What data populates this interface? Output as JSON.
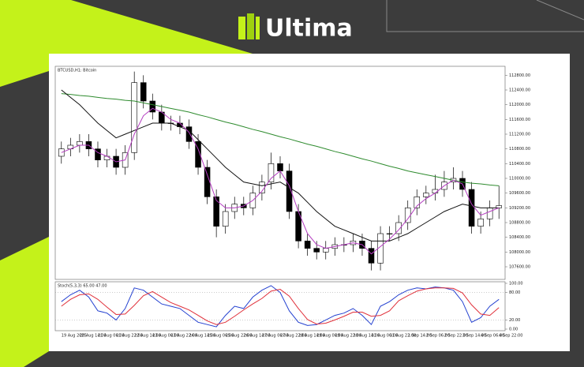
{
  "header": {
    "brand": "Ultima"
  },
  "chart_data": [
    {
      "type": "candlestick",
      "label": "BTCUSD,H1: Bitcoin",
      "open": [
        110600,
        110800,
        110900,
        111000,
        110800,
        110500,
        110600,
        110300,
        110700,
        112600,
        112100,
        111800,
        111500,
        111500,
        111400,
        111000,
        110300,
        109500,
        108700,
        109100,
        109300,
        109200,
        109600,
        109900,
        110400,
        110200,
        109100,
        108300,
        108100,
        108000,
        108100,
        108200,
        108200,
        108300,
        108100,
        107700,
        108500,
        108500,
        108800,
        109200,
        109500,
        109600,
        109700,
        109900,
        110000,
        109700,
        108700,
        108900,
        109200
      ],
      "high": [
        111000,
        111100,
        111200,
        111200,
        111000,
        110800,
        110800,
        110900,
        112900,
        112800,
        112300,
        112000,
        111700,
        111700,
        111600,
        111200,
        110500,
        109700,
        109300,
        109500,
        109500,
        109800,
        110100,
        110700,
        110600,
        110400,
        109300,
        108500,
        108300,
        108300,
        108400,
        108400,
        108500,
        108500,
        108300,
        108700,
        108700,
        109000,
        109400,
        109700,
        109800,
        110100,
        110200,
        110300,
        110200,
        109900,
        109100,
        109400,
        109800
      ],
      "low": [
        110400,
        110600,
        110700,
        110600,
        110300,
        110300,
        110100,
        110100,
        110500,
        111900,
        111600,
        111300,
        111300,
        111200,
        110800,
        110100,
        109300,
        108400,
        108500,
        108900,
        109000,
        109000,
        109400,
        109700,
        110000,
        108900,
        108100,
        107900,
        107800,
        107800,
        107900,
        108000,
        108000,
        107900,
        107500,
        107500,
        108300,
        108300,
        108600,
        109000,
        109300,
        109400,
        109500,
        109700,
        109500,
        108500,
        108500,
        108700,
        108900
      ],
      "close": [
        110800,
        110900,
        111000,
        110800,
        110500,
        110600,
        110300,
        110700,
        112600,
        112100,
        111800,
        111500,
        111500,
        111400,
        111000,
        110300,
        109500,
        108700,
        109100,
        109300,
        109200,
        109600,
        109900,
        110400,
        110200,
        109100,
        108300,
        108100,
        108000,
        108100,
        108200,
        108200,
        108300,
        108100,
        107700,
        108500,
        108500,
        108800,
        109200,
        109500,
        109600,
        109700,
        109900,
        110000,
        109700,
        108700,
        108900,
        109200,
        109260
      ],
      "up_color": "#ffffff",
      "down_color": "#000000",
      "series": [
        {
          "color": "#2e8b2e",
          "values": [
            112300,
            112280,
            112250,
            112230,
            112200,
            112170,
            112150,
            112120,
            112100,
            112050,
            112000,
            111950,
            111900,
            111850,
            111800,
            111730,
            111670,
            111600,
            111530,
            111470,
            111400,
            111330,
            111270,
            111200,
            111130,
            111070,
            111000,
            110930,
            110870,
            110800,
            110730,
            110670,
            110600,
            110530,
            110470,
            110400,
            110330,
            110270,
            110200,
            110150,
            110100,
            110050,
            110000,
            109950,
            109900,
            109870,
            109850,
            109820,
            109800
          ]
        },
        {
          "color": "#111111",
          "values": [
            112400,
            112200,
            112000,
            111750,
            111500,
            111300,
            111100,
            111200,
            111300,
            111400,
            111500,
            111500,
            111500,
            111400,
            111300,
            111050,
            110800,
            110550,
            110300,
            110100,
            109900,
            109850,
            109800,
            109850,
            109900,
            109750,
            109600,
            109350,
            109100,
            108900,
            108700,
            108600,
            108500,
            108400,
            108300,
            108300,
            108300,
            108400,
            108500,
            108650,
            108800,
            108950,
            109100,
            109200,
            109300,
            109250,
            109200,
            109200,
            109200
          ]
        },
        {
          "color": "#b43cc0",
          "values": [
            110700,
            110800,
            110900,
            110900,
            110700,
            110600,
            110450,
            110500,
            111200,
            111700,
            111900,
            111800,
            111600,
            111500,
            111250,
            110800,
            110100,
            109400,
            109200,
            109200,
            109250,
            109400,
            109650,
            110000,
            110200,
            109800,
            109100,
            108500,
            108200,
            108100,
            108150,
            108200,
            108250,
            108200,
            107950,
            108150,
            108350,
            108600,
            108900,
            109250,
            109450,
            109600,
            109800,
            109950,
            109850,
            109300,
            109000,
            109100,
            109200
          ]
        }
      ],
      "ylim": [
        107300,
        113000
      ],
      "yticks": [
        {
          "value": 107600,
          "label": "107600.00"
        },
        {
          "value": 108000,
          "label": "108000.00"
        },
        {
          "value": 108400,
          "label": "108400.00"
        },
        {
          "value": 108800,
          "label": "108800.00"
        },
        {
          "value": 109200,
          "label": "109200.00"
        },
        {
          "value": 109600,
          "label": "109600.00"
        },
        {
          "value": 110000,
          "label": "110000.00"
        },
        {
          "value": 110400,
          "label": "110400.00"
        },
        {
          "value": 110800,
          "label": "110800.00"
        },
        {
          "value": 111200,
          "label": "111200.00"
        },
        {
          "value": 111600,
          "label": "111600.00"
        },
        {
          "value": 112000,
          "label": "112000.00"
        },
        {
          "value": 112400,
          "label": "112400.00"
        },
        {
          "value": 112800,
          "label": "112800.00"
        }
      ]
    },
    {
      "type": "line",
      "label": "Stoch(5,3,3) 65.00 47.00",
      "categories": [
        "19 Aug 2025",
        null,
        "20 Aug 14:00",
        null,
        "21 Aug 06:00",
        null,
        "21 Aug 22:00",
        null,
        "22 Aug 14:00",
        null,
        "23 Aug 06:00",
        null,
        "23 Aug 22:00",
        null,
        "24 Aug 14:00",
        null,
        "25 Aug 06:00",
        null,
        "25 Aug 22:00",
        null,
        "26 Aug 14:00",
        null,
        "27 Aug 06:00",
        null,
        "27 Aug 22:00",
        null,
        "28 Aug 14:00",
        null,
        "29 Aug 06:00",
        null,
        "29 Aug 22:00",
        null,
        "30 Aug 14:00",
        null,
        "31 Aug 06:00",
        null,
        "31 Aug 22:00",
        null,
        "1 Sep 14:00",
        null,
        "2 Sep 06:00",
        null,
        "2 Sep 22:00",
        null,
        "3 Sep 14:00",
        null,
        "4 Sep 06:00",
        null,
        "4 Sep 22:00"
      ],
      "series": [
        {
          "color": "#2340d0",
          "values": [
            60,
            75,
            85,
            70,
            40,
            35,
            20,
            45,
            90,
            85,
            70,
            55,
            50,
            45,
            30,
            15,
            10,
            5,
            30,
            50,
            45,
            70,
            85,
            95,
            80,
            40,
            15,
            8,
            10,
            20,
            30,
            35,
            45,
            30,
            10,
            50,
            60,
            75,
            85,
            90,
            88,
            92,
            90,
            85,
            60,
            15,
            25,
            50,
            65
          ]
        },
        {
          "color": "#e0303a",
          "values": [
            50,
            65,
            75,
            77,
            65,
            48,
            32,
            33,
            52,
            73,
            82,
            70,
            58,
            50,
            42,
            30,
            18,
            10,
            15,
            28,
            42,
            55,
            67,
            83,
            87,
            72,
            45,
            21,
            11,
            13,
            20,
            28,
            37,
            37,
            28,
            30,
            40,
            62,
            73,
            83,
            88,
            90,
            90,
            89,
            79,
            53,
            33,
            30,
            47
          ]
        }
      ],
      "ylim": [
        0,
        100
      ],
      "yticks": [
        {
          "value": 0,
          "label": "0.00"
        },
        {
          "value": 20,
          "label": "20.00"
        },
        {
          "value": 80,
          "label": "80.00"
        },
        {
          "value": 100,
          "label": "100.00"
        }
      ],
      "grid": true
    }
  ]
}
